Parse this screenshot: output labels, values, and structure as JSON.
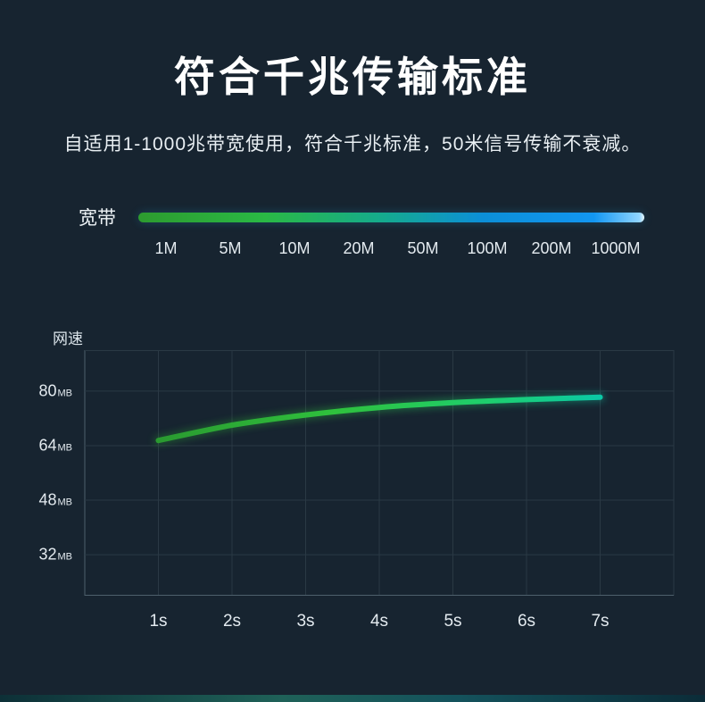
{
  "page": {
    "background": "#172430",
    "title": "符合千兆传输标准",
    "subtitle": "自适用1-1000兆带宽使用，符合千兆标准，50米信号传输不衰减。",
    "footer_gradient": [
      "#0d3037 0%",
      "#1f6158 40%",
      "#14525c 65%",
      "#0b2c38 100%"
    ]
  },
  "bandwidth_scale": {
    "label": "宽带",
    "ticks": [
      "1M",
      "5M",
      "10M",
      "20M",
      "50M",
      "100M",
      "200M",
      "1000M"
    ],
    "bar_gradient": [
      "#2d9b2f 0%",
      "#2ab945 25%",
      "#15ab8d 48%",
      "#0c8fd8 68%",
      "#1296f2 90%",
      "#8fd4ff 99%",
      "#e8f7ff 100%"
    ]
  },
  "chart_data": {
    "type": "line",
    "title": "",
    "xlabel": "",
    "ylabel": "网速",
    "x": [
      1,
      2,
      3,
      4,
      5,
      6,
      7
    ],
    "x_ticks": [
      {
        "v": 1,
        "label": "1s"
      },
      {
        "v": 2,
        "label": "2s"
      },
      {
        "v": 3,
        "label": "3s"
      },
      {
        "v": 4,
        "label": "4s"
      },
      {
        "v": 5,
        "label": "5s"
      },
      {
        "v": 6,
        "label": "6s"
      },
      {
        "v": 7,
        "label": "7s"
      }
    ],
    "xlim": [
      0,
      8
    ],
    "y_ticks": [
      {
        "v": 80,
        "num": "80",
        "unit": "MB"
      },
      {
        "v": 64,
        "num": "64",
        "unit": "MB"
      },
      {
        "v": 48,
        "num": "48",
        "unit": "MB"
      },
      {
        "v": 32,
        "num": "32",
        "unit": "MB"
      }
    ],
    "ylim": [
      20,
      92
    ],
    "grid": true,
    "legend": "none",
    "series": [
      {
        "name": "网速",
        "unit": "MB",
        "values": [
          65.5,
          70,
          73,
          75.2,
          76.6,
          77.5,
          78.2
        ]
      }
    ],
    "line_gradient": [
      {
        "offset": "0%",
        "color": "#2a9a30"
      },
      {
        "offset": "40%",
        "color": "#2fc13d"
      },
      {
        "offset": "75%",
        "color": "#1ecf6e"
      },
      {
        "offset": "100%",
        "color": "#0bc9a6"
      }
    ],
    "grid_color": "#2a3944",
    "axis_color": "#4d5f6b"
  }
}
